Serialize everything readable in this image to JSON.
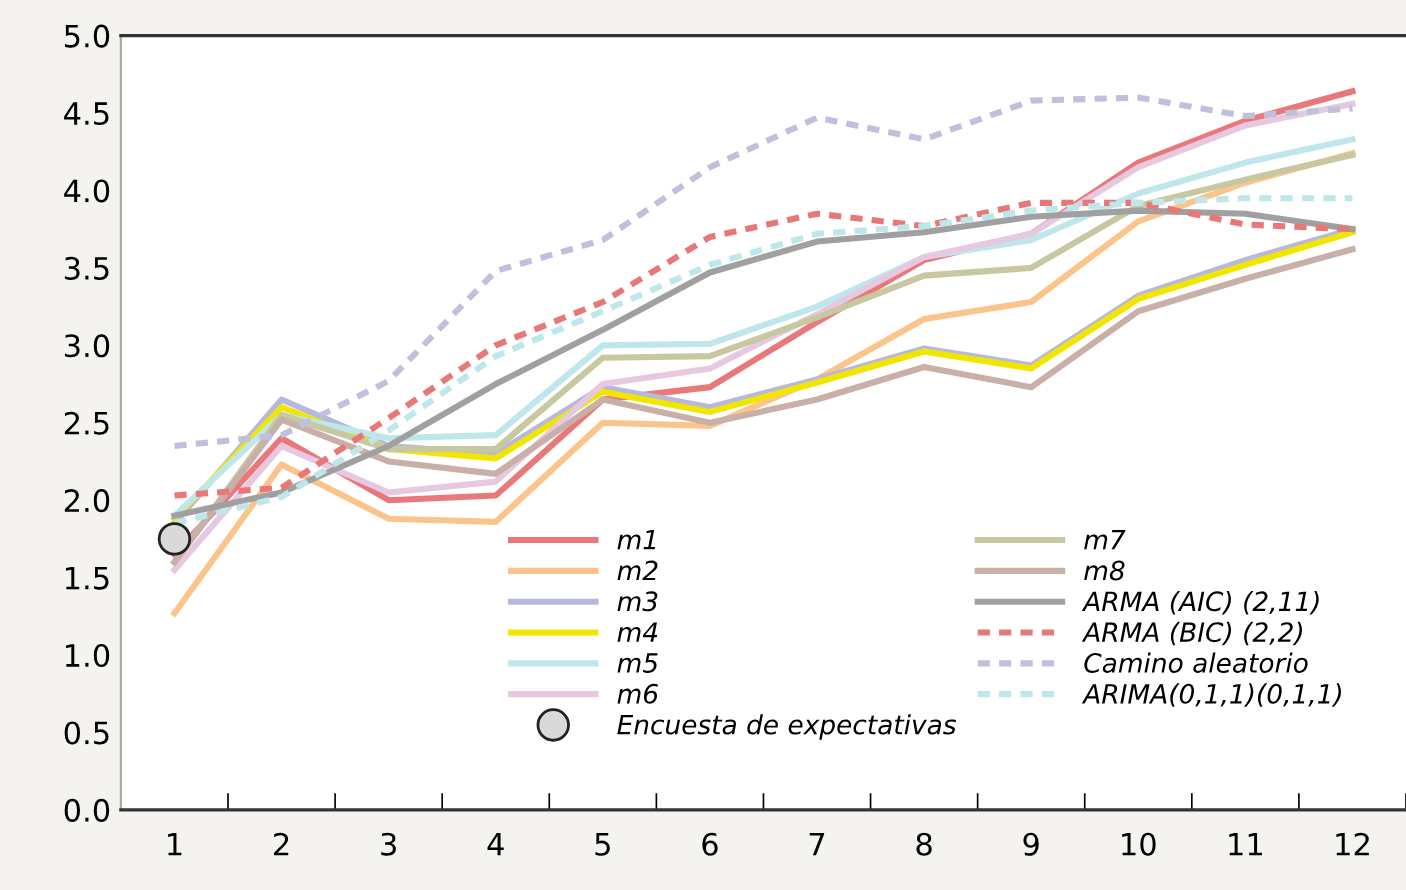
{
  "chart_data": {
    "type": "line",
    "categories": [
      "1",
      "2",
      "3",
      "4",
      "5",
      "6",
      "7",
      "8",
      "9",
      "10",
      "11",
      "12"
    ],
    "ylim": [
      0,
      5
    ],
    "yticks": [
      {
        "value": 0,
        "label": "0.0"
      },
      {
        "value": 0.5,
        "label": "0.5"
      },
      {
        "value": 1,
        "label": "1.0"
      },
      {
        "value": 1.5,
        "label": "1.5"
      },
      {
        "value": 2,
        "label": "2.0"
      },
      {
        "value": 2.5,
        "label": "2.5"
      },
      {
        "value": 3,
        "label": "3.0"
      },
      {
        "value": 3.5,
        "label": "3.5"
      },
      {
        "value": 4,
        "label": "4.0"
      },
      {
        "value": 4.5,
        "label": "4.5"
      },
      {
        "value": 5,
        "label": "5.0"
      }
    ],
    "grid": false,
    "legend": "bottom right",
    "marker": "none",
    "series": [
      {
        "name": "m1",
        "color": "#e8787a",
        "line_style": "solid",
        "values": [
          1.65,
          2.4,
          2.0,
          2.03,
          2.65,
          2.73,
          3.15,
          3.55,
          3.72,
          4.18,
          4.45,
          4.64
        ]
      },
      {
        "name": "m2",
        "color": "#fbc48a",
        "line_style": "solid",
        "values": [
          1.27,
          2.23,
          1.88,
          1.86,
          2.5,
          2.48,
          2.78,
          3.17,
          3.28,
          3.8,
          4.05,
          4.24
        ]
      },
      {
        "name": "m3",
        "color": "#b8b8dc",
        "line_style": "solid",
        "values": [
          1.85,
          2.65,
          2.35,
          2.3,
          2.73,
          2.6,
          2.78,
          2.98,
          2.87,
          3.32,
          3.55,
          3.75
        ]
      },
      {
        "name": "m4",
        "color": "#f0e600",
        "line_style": "solid",
        "values": [
          1.88,
          2.6,
          2.33,
          2.27,
          2.7,
          2.57,
          2.76,
          2.96,
          2.85,
          3.3,
          3.52,
          3.73
        ]
      },
      {
        "name": "m5",
        "color": "#bfe6ea",
        "line_style": "solid",
        "values": [
          1.9,
          2.55,
          2.4,
          2.42,
          3.0,
          3.01,
          3.25,
          3.57,
          3.68,
          3.98,
          4.18,
          4.33
        ]
      },
      {
        "name": "m6",
        "color": "#e6c8e0",
        "line_style": "solid",
        "values": [
          1.55,
          2.35,
          2.05,
          2.12,
          2.75,
          2.85,
          3.2,
          3.57,
          3.72,
          4.15,
          4.42,
          4.56
        ]
      },
      {
        "name": "Encuesta de expectativas",
        "type": "scatter",
        "color": "#d9d9d9",
        "marker": "circle",
        "x": [
          "1"
        ],
        "values": [
          1.75
        ]
      },
      {
        "name": "m7",
        "color": "#c8c8a0",
        "line_style": "solid",
        "values": [
          1.6,
          2.55,
          2.33,
          2.33,
          2.92,
          2.93,
          3.18,
          3.45,
          3.5,
          3.9,
          4.07,
          4.23
        ]
      },
      {
        "name": "m8",
        "color": "#c8b0a8",
        "line_style": "solid",
        "values": [
          1.6,
          2.52,
          2.25,
          2.17,
          2.65,
          2.5,
          2.65,
          2.86,
          2.73,
          3.22,
          3.43,
          3.62
        ]
      },
      {
        "name": "ARMA (AIC) (2,11)",
        "color": "#a0a0a0",
        "line_style": "solid",
        "values": [
          1.9,
          2.05,
          2.35,
          2.75,
          3.1,
          3.47,
          3.67,
          3.73,
          3.83,
          3.87,
          3.85,
          3.75
        ]
      },
      {
        "name": "ARMA (BIC) (2,2)",
        "color": "#e87878",
        "line_style": "dashed",
        "values": [
          2.03,
          2.08,
          2.53,
          3.0,
          3.28,
          3.7,
          3.85,
          3.77,
          3.92,
          3.92,
          3.78,
          3.75
        ]
      },
      {
        "name": "Camino aleatorio",
        "color": "#c0c0dc",
        "line_style": "dashed",
        "values": [
          2.35,
          2.42,
          2.77,
          3.48,
          3.68,
          4.15,
          4.47,
          4.33,
          4.58,
          4.6,
          4.48,
          4.53
        ]
      },
      {
        "name": "ARIMA(0,1,1)(0,1,1)",
        "color": "#bfe6ea",
        "line_style": "dashed",
        "values": [
          1.85,
          2.02,
          2.45,
          2.93,
          3.22,
          3.52,
          3.72,
          3.77,
          3.87,
          3.92,
          3.95,
          3.95
        ]
      }
    ]
  }
}
